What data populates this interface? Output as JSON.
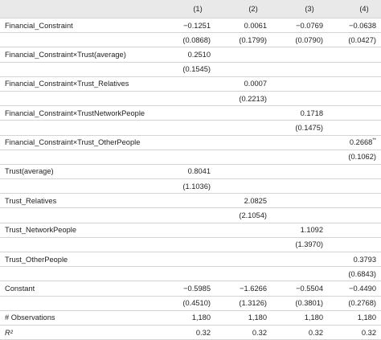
{
  "table": {
    "header": [
      "(1)",
      "(2)",
      "(3)",
      "(4)"
    ],
    "rows": [
      {
        "label": "Financial_Constraint",
        "cells": [
          "−0.1251",
          "0.0061",
          "−0.0769",
          "−0.0638"
        ]
      },
      {
        "label": null,
        "cells": [
          "(0.0868)",
          "(0.1799)",
          "(0.0790)",
          "(0.0427)"
        ]
      },
      {
        "label": "Financial_Constraint×Trust(average)",
        "cells": [
          "0.2510",
          null,
          null,
          null
        ]
      },
      {
        "label": null,
        "cells": [
          "(0.1545)",
          null,
          null,
          null
        ]
      },
      {
        "label": "Financial_Constraint×Trust_Relatives",
        "cells": [
          null,
          "0.0007",
          null,
          null
        ]
      },
      {
        "label": null,
        "cells": [
          null,
          "(0.2213)",
          null,
          null
        ]
      },
      {
        "label": "Financial_Constraint×TrustNetworkPeople",
        "cells": [
          null,
          null,
          "0.1718",
          null
        ]
      },
      {
        "label": null,
        "cells": [
          null,
          null,
          "(0.1475)",
          null
        ]
      },
      {
        "label": "Financial_Constraint×Trust_OtherPeople",
        "cells": [
          null,
          null,
          null,
          {
            "text": "0.2668",
            "note": "**"
          }
        ]
      },
      {
        "label": null,
        "cells": [
          null,
          null,
          null,
          "(0.1062)"
        ]
      },
      {
        "label": "Trust(average)",
        "cells": [
          "0.8041",
          null,
          null,
          null
        ]
      },
      {
        "label": null,
        "cells": [
          "(1.1036)",
          null,
          null,
          null
        ]
      },
      {
        "label": "Trust_Relatives",
        "cells": [
          null,
          "2.0825",
          null,
          null
        ]
      },
      {
        "label": null,
        "cells": [
          null,
          "(2.1054)",
          null,
          null
        ]
      },
      {
        "label": "Trust_NetworkPeople",
        "cells": [
          null,
          null,
          "1.1092",
          null
        ]
      },
      {
        "label": null,
        "cells": [
          null,
          null,
          "(1.3970)",
          null
        ]
      },
      {
        "label": "Trust_OtherPeople",
        "cells": [
          null,
          null,
          null,
          "0.3793"
        ]
      },
      {
        "label": null,
        "cells": [
          null,
          null,
          null,
          "(0.6843)"
        ]
      },
      {
        "label": "Constant",
        "cells": [
          "−0.5985",
          "−1.6266",
          "−0.5504",
          "−0.4490"
        ]
      },
      {
        "label": null,
        "cells": [
          "(0.4510)",
          "(1.3126)",
          "(0.3801)",
          "(0.2768)"
        ]
      },
      {
        "label": "# Observations",
        "cells": [
          "1,180",
          "1,180",
          "1,180",
          "1,180"
        ]
      },
      {
        "label": "R²",
        "cells": [
          "0.32",
          "0.32",
          "0.32",
          "0.32"
        ]
      }
    ]
  }
}
